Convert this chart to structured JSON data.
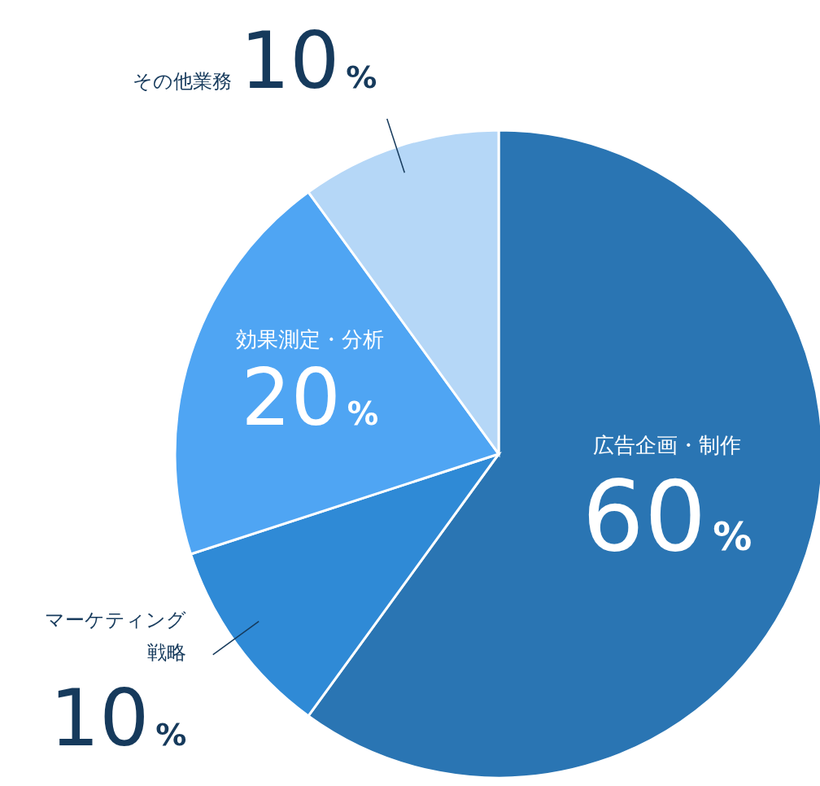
{
  "chart_data": {
    "type": "pie",
    "categories": [
      "広告企画・制作",
      "マーケティング戦略",
      "効果測定・分析",
      "その他業務"
    ],
    "values": [
      60,
      10,
      20,
      10
    ],
    "colors": [
      "#2a75b3",
      "#2f8ad6",
      "#4fa5f3",
      "#b5d7f7"
    ],
    "value_labels": [
      "60%",
      "10%",
      "20%",
      "10%"
    ],
    "legend": false
  }
}
